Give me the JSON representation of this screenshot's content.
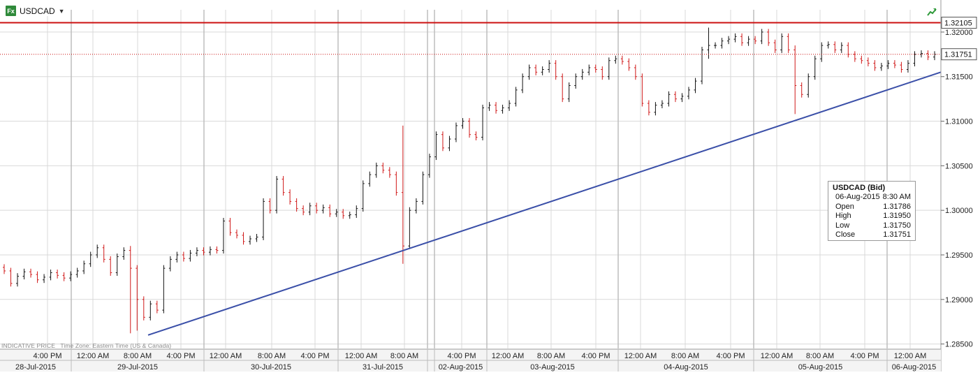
{
  "symbol": {
    "name": "USDCAD",
    "icon": "fx-icon"
  },
  "footer": {
    "indicative": "INDICATIVE PRICE",
    "timezone": "Time Zone: Eastern Time (US & Canada)"
  },
  "colors": {
    "up": "#111111",
    "down": "#d01818",
    "trendline": "#3a4fa8",
    "resistance": "#cc1111",
    "current_price": "#cc1111",
    "grid": "#d9d9d9",
    "session_line": "#bdbdbd"
  },
  "infobox": {
    "title": "USDCAD (Bid)",
    "rows": [
      {
        "label": "06-Aug-2015",
        "value": "8:30 AM"
      },
      {
        "label": "Open",
        "value": "1.31786"
      },
      {
        "label": "High",
        "value": "1.31950"
      },
      {
        "label": "Low",
        "value": "1.31750"
      },
      {
        "label": "Close",
        "value": "1.31751"
      }
    ]
  },
  "chart_data": {
    "type": "candlestick",
    "title": "USDCAD",
    "ylim": [
      1.2845,
      1.3225
    ],
    "y_ticks": [
      "1.32000",
      "1.31500",
      "1.31000",
      "1.30500",
      "1.30000",
      "1.29500",
      "1.29000",
      "1.28500"
    ],
    "time_labels": [
      "4:00 PM",
      "12:00 AM",
      "8:00 AM",
      "4:00 PM",
      "12:00 AM",
      "8:00 AM",
      "4:00 PM",
      "12:00 AM",
      "8:00 AM",
      "4:00 PM",
      "12:00 AM",
      "8:00 AM",
      "4:00 PM",
      "12:00 AM",
      "8:00 AM",
      "4:00 PM",
      "12:00 AM",
      "8:00 AM",
      "4:00 PM",
      "12:00 AM"
    ],
    "date_labels": [
      "28-Jul-2015",
      "29-Jul-2015",
      "30-Jul-2015",
      "31-Jul-2015",
      "02-Aug-2015",
      "03-Aug-2015",
      "04-Aug-2015",
      "05-Aug-2015",
      "06-Aug-2015"
    ],
    "resistance_level": 1.32105,
    "current_price": 1.31751,
    "trendline": {
      "start_time": "29-Jul-2015 ~3:00 PM",
      "start_value": 1.286,
      "end_time": "06-Aug-2015 ~9:00 AM",
      "end_value": 1.3155
    },
    "close_series": [
      1.2932,
      1.2918,
      1.2926,
      1.2931,
      1.2928,
      1.2922,
      1.2925,
      1.293,
      1.2927,
      1.2924,
      1.2928,
      1.2932,
      1.294,
      1.295,
      1.2958,
      1.2945,
      1.293,
      1.2948,
      1.2955,
      1.2935,
      1.29,
      1.288,
      1.2895,
      1.2888,
      1.2935,
      1.2945,
      1.295,
      1.2946,
      1.2952,
      1.2955,
      1.2953,
      1.2956,
      1.2955,
      1.2988,
      1.2975,
      1.2972,
      1.2965,
      1.2968,
      1.297,
      1.301,
      1.3,
      1.3035,
      1.302,
      1.301,
      1.3002,
      1.2998,
      1.3005,
      1.3,
      1.3003,
      1.2996,
      1.2998,
      1.2994,
      1.2995,
      1.3002,
      1.303,
      1.304,
      1.305,
      1.3045,
      1.304,
      1.302,
      1.296,
      1.3,
      1.301,
      1.304,
      1.306,
      1.3085,
      1.307,
      1.308,
      1.3095,
      1.31,
      1.3085,
      1.3082,
      1.3115,
      1.3118,
      1.3112,
      1.3115,
      1.312,
      1.3135,
      1.315,
      1.316,
      1.3155,
      1.3158,
      1.3165,
      1.315,
      1.3125,
      1.314,
      1.315,
      1.3155,
      1.316,
      1.3158,
      1.315,
      1.3168,
      1.317,
      1.3167,
      1.316,
      1.315,
      1.312,
      1.311,
      1.3118,
      1.312,
      1.313,
      1.3125,
      1.3128,
      1.3135,
      1.3145,
      1.318,
      1.3185,
      1.3185,
      1.319,
      1.3192,
      1.3195,
      1.3188,
      1.3192,
      1.319,
      1.32,
      1.3188,
      1.318,
      1.3195,
      1.318,
      1.314,
      1.313,
      1.315,
      1.317,
      1.3185,
      1.3186,
      1.318,
      1.3185,
      1.3175,
      1.317,
      1.3168,
      1.3165,
      1.316,
      1.3162,
      1.3165,
      1.3163,
      1.3158,
      1.3165,
      1.3175,
      1.3176,
      1.3172,
      1.3175
    ]
  }
}
